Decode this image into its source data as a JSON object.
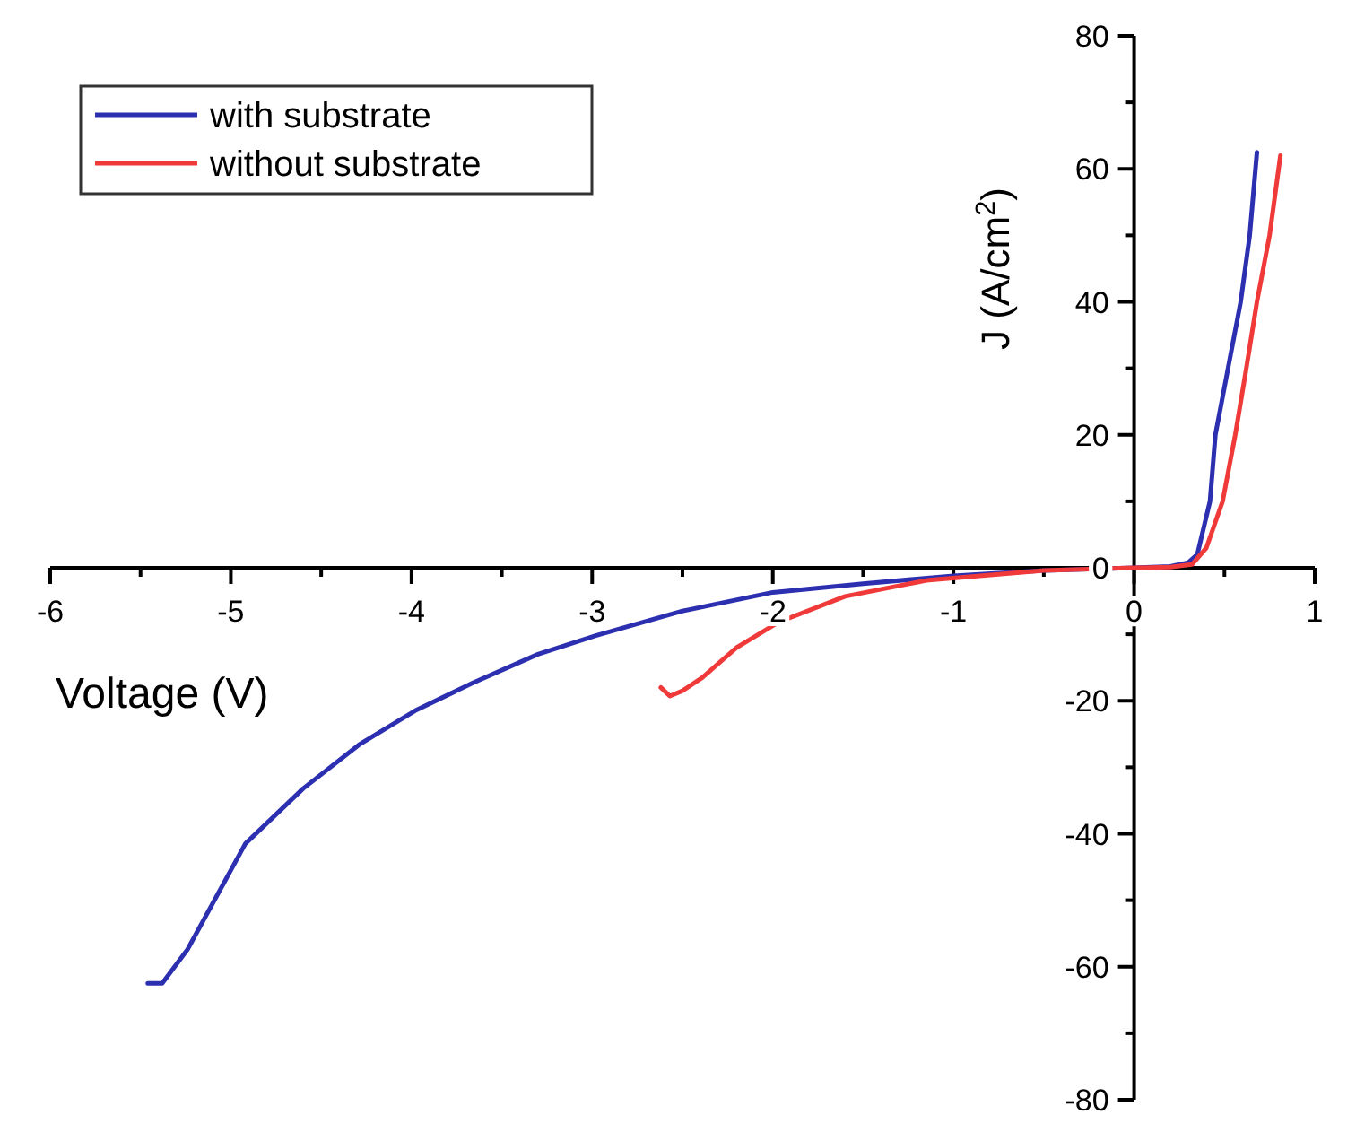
{
  "chart_data": {
    "type": "line",
    "xlabel": "Voltage (V)",
    "ylabel": "J (A/cm$^{2}$)",
    "xlim": [
      -6,
      1
    ],
    "ylim": [
      -80,
      80
    ],
    "xticks": [
      -6,
      {
        "value": -5.5,
        "label": null
      },
      -5,
      {
        "value": -4.5,
        "label": null
      },
      -4,
      {
        "value": -3.5,
        "label": null
      },
      -3,
      {
        "value": -2.5,
        "label": null
      },
      -2,
      {
        "value": -1.5,
        "label": null
      },
      -1,
      {
        "value": -0.5,
        "label": null
      },
      0,
      {
        "value": 0.5,
        "label": null
      },
      1
    ],
    "yticks": [
      -80,
      {
        "value": -70,
        "label": null
      },
      -60,
      {
        "value": -50,
        "label": null
      },
      -40,
      {
        "value": -30,
        "label": null
      },
      -20,
      {
        "value": -10,
        "label": null
      },
      0,
      {
        "value": 10,
        "label": null
      },
      20,
      {
        "value": 30,
        "label": null
      },
      40,
      {
        "value": 50,
        "label": null
      },
      60,
      {
        "value": 70,
        "label": null
      },
      80
    ],
    "legend": "top left",
    "grid": false,
    "line_style": "solid",
    "series": [
      {
        "name": "with substrate",
        "color": "#2b2fb0",
        "x": [
          -5.46,
          -5.38,
          -5.24,
          -4.92,
          -4.6,
          -4.29,
          -3.98,
          -3.66,
          -3.3,
          -2.98,
          -2.5,
          -2,
          -1.5,
          -1,
          -0.5,
          0,
          0.2,
          0.3,
          0.35,
          0.42,
          0.45,
          0.52,
          0.59,
          0.64,
          0.68
        ],
        "values": [
          -62.5,
          -62.5,
          -57.4,
          -41.5,
          -33.2,
          -26.6,
          -21.5,
          -17.3,
          -13,
          -10.2,
          -6.5,
          -3.7,
          -2.4,
          -1.2,
          -0.4,
          0,
          0.2,
          0.8,
          2,
          10,
          20,
          30,
          40,
          50,
          62.5
        ]
      },
      {
        "name": "without substrate",
        "color": "#f03a3a",
        "x": [
          -2.62,
          -2.57,
          -2.5,
          -2.39,
          -2.2,
          -1.97,
          -1.6,
          -1.15,
          -0.5,
          0,
          0.2,
          0.32,
          0.4,
          0.49,
          0.56,
          0.62,
          0.68,
          0.75,
          0.81
        ],
        "values": [
          -18,
          -19.3,
          -18.5,
          -16.5,
          -12,
          -8.2,
          -4.3,
          -1.9,
          -0.4,
          0,
          0.1,
          0.5,
          3,
          10,
          20,
          29.8,
          40,
          50,
          62
        ]
      }
    ]
  }
}
